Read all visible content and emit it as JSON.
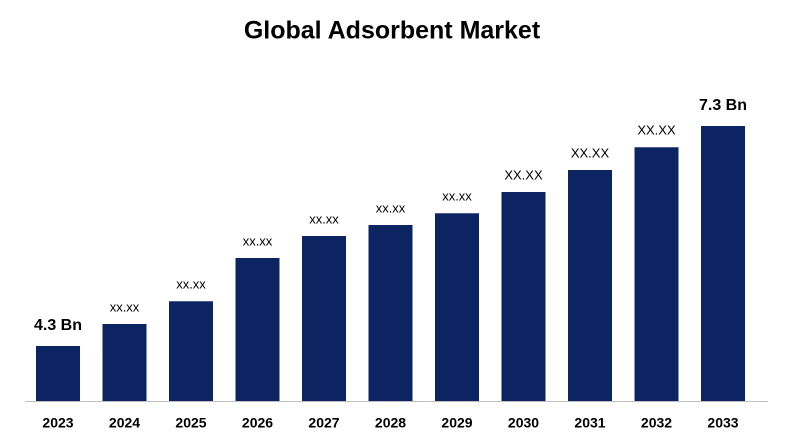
{
  "chart_data": {
    "type": "bar",
    "title": "Global Adsorbent Market",
    "categories": [
      "2023",
      "2024",
      "2025",
      "2026",
      "2027",
      "2028",
      "2029",
      "2030",
      "2031",
      "2032",
      "2033"
    ],
    "values": [
      4.3,
      4.6,
      4.91,
      5.5,
      5.8,
      5.95,
      6.11,
      6.4,
      6.7,
      7.01,
      7.3
    ],
    "value_labels": [
      "4.3 Bn",
      "xx.xx",
      "xx.xx",
      "xx.xx",
      "xx.xx",
      "xx.xx",
      "xx.xx",
      "XX.XX",
      "XX.XX",
      "XX.XX",
      "7.3 Bn"
    ],
    "color": "#0c2461",
    "ylim": [
      3.55,
      7.3
    ]
  }
}
